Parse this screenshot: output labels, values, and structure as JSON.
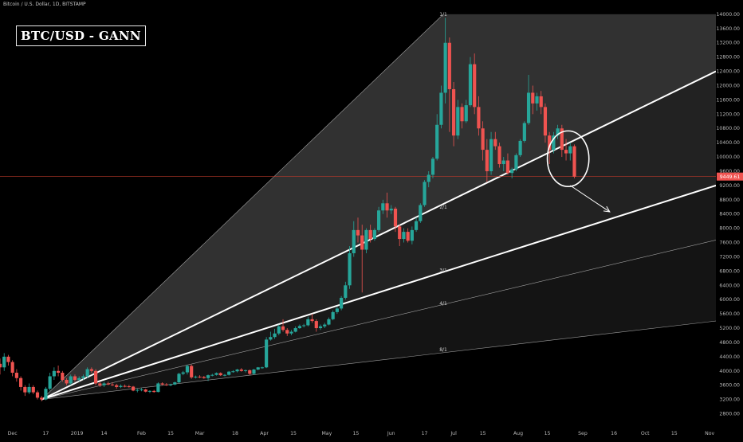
{
  "header": {
    "symbol": "Bitcoin / U.S. Dollar, 1D, BITSTAMP",
    "title": "BTC/USD - GANN"
  },
  "colors": {
    "background": "#000000",
    "up": "#26a69a",
    "down": "#ef5350",
    "fan_line": "#ffffff",
    "fan_fill": "#2a2a2a",
    "price_line": "#c0392b",
    "price_tag": "#ef5350",
    "axis_text": "#b8b8b8"
  },
  "chart_data": {
    "type": "candlestick",
    "title": "BTC/USD - GANN",
    "xlabel": "",
    "ylabel": "",
    "y_scale": "linear",
    "ylim": [
      2700,
      14400
    ],
    "x_range": [
      "2018-11-25",
      "2019-11-04"
    ],
    "grid": false,
    "y_ticks": [
      "2800.00",
      "3200.00",
      "3600.00",
      "4000.00",
      "4400.00",
      "4800.00",
      "5200.00",
      "5600.00",
      "6000.00",
      "6400.00",
      "6800.00",
      "7200.00",
      "7600.00",
      "8000.00",
      "8400.00",
      "8800.00",
      "9200.00",
      "9600.00",
      "10000.00",
      "10400.00",
      "10800.00",
      "11200.00",
      "11600.00",
      "12000.00",
      "12400.00",
      "12800.00",
      "13200.00",
      "13600.00",
      "14000.00"
    ],
    "x_ticks": [
      {
        "label": "Dec",
        "date": "2018-12-01"
      },
      {
        "label": "17",
        "date": "2018-12-17"
      },
      {
        "label": "2019",
        "date": "2019-01-01"
      },
      {
        "label": "14",
        "date": "2019-01-14"
      },
      {
        "label": "Feb",
        "date": "2019-02-01"
      },
      {
        "label": "15",
        "date": "2019-02-15"
      },
      {
        "label": "Mar",
        "date": "2019-03-01"
      },
      {
        "label": "18",
        "date": "2019-03-18"
      },
      {
        "label": "Apr",
        "date": "2019-04-01"
      },
      {
        "label": "15",
        "date": "2019-04-15"
      },
      {
        "label": "May",
        "date": "2019-05-01"
      },
      {
        "label": "15",
        "date": "2019-05-15"
      },
      {
        "label": "Jun",
        "date": "2019-06-01"
      },
      {
        "label": "17",
        "date": "2019-06-17"
      },
      {
        "label": "Jul",
        "date": "2019-07-01"
      },
      {
        "label": "15",
        "date": "2019-07-15"
      },
      {
        "label": "Aug",
        "date": "2019-08-01"
      },
      {
        "label": "15",
        "date": "2019-08-15"
      },
      {
        "label": "Sep",
        "date": "2019-09-01"
      },
      {
        "label": "16",
        "date": "2019-09-16"
      },
      {
        "label": "Oct",
        "date": "2019-10-01"
      },
      {
        "label": "15",
        "date": "2019-10-15"
      },
      {
        "label": "Nov",
        "date": "2019-11-01"
      }
    ],
    "last_price": {
      "value": 9449.61,
      "label": "9449.61"
    },
    "gann_fan": {
      "origin": {
        "date": "2018-12-15",
        "price": 3200
      },
      "lines": [
        {
          "label": "1/1",
          "end": {
            "date": "2019-06-26",
            "price": 14000
          },
          "style": "thin"
        },
        {
          "label": "2/1",
          "end": {
            "date": "2019-11-04",
            "price": 12400
          },
          "style": "bold"
        },
        {
          "label": "3/1",
          "end": {
            "date": "2019-11-04",
            "price": 9200
          },
          "style": "bold"
        },
        {
          "label": "4/1",
          "end": {
            "date": "2019-11-04",
            "price": 7670
          },
          "style": "thin"
        },
        {
          "label": "8/1",
          "end": {
            "date": "2019-11-04",
            "price": 5400
          },
          "style": "thin"
        }
      ],
      "label_positions": [
        {
          "label": "1/1",
          "date": "2019-06-26",
          "price": 13950
        },
        {
          "label": "2/1",
          "date": "2019-06-26",
          "price": 8550
        },
        {
          "label": "3/1",
          "date": "2019-06-26",
          "price": 6780
        },
        {
          "label": "4/1",
          "date": "2019-06-26",
          "price": 5850
        },
        {
          "label": "8/1",
          "date": "2019-06-26",
          "price": 4550
        }
      ]
    },
    "annotations": {
      "ellipse": {
        "date": "2019-08-25",
        "price": 9950,
        "rx_days": 5,
        "ry_price": 780
      },
      "arrow": {
        "from": {
          "date": "2019-08-26",
          "price": 9200
        },
        "to": {
          "date": "2019-09-14",
          "price": 8460
        }
      }
    },
    "ohlc": {
      "columns": [
        "date",
        "open",
        "high",
        "low",
        "close"
      ],
      "rows": [
        [
          "2018-11-25",
          4200,
          4350,
          3900,
          4100
        ],
        [
          "2018-11-27",
          4100,
          4500,
          4000,
          4400
        ],
        [
          "2018-11-29",
          4400,
          4450,
          4150,
          4250
        ],
        [
          "2018-12-01",
          4250,
          4300,
          3850,
          3950
        ],
        [
          "2018-12-03",
          3950,
          4050,
          3700,
          3800
        ],
        [
          "2018-12-05",
          3800,
          3850,
          3450,
          3550
        ],
        [
          "2018-12-07",
          3550,
          3600,
          3300,
          3400
        ],
        [
          "2018-12-09",
          3400,
          3650,
          3350,
          3550
        ],
        [
          "2018-12-11",
          3550,
          3600,
          3350,
          3400
        ],
        [
          "2018-12-13",
          3400,
          3450,
          3200,
          3250
        ],
        [
          "2018-12-15",
          3250,
          3300,
          3150,
          3200
        ],
        [
          "2018-12-17",
          3200,
          3550,
          3180,
          3500
        ],
        [
          "2018-12-19",
          3500,
          3950,
          3450,
          3850
        ],
        [
          "2018-12-21",
          3850,
          4100,
          3750,
          4000
        ],
        [
          "2018-12-23",
          4000,
          4150,
          3850,
          3950
        ],
        [
          "2018-12-25",
          3950,
          4000,
          3700,
          3750
        ],
        [
          "2018-12-27",
          3750,
          3800,
          3600,
          3650
        ],
        [
          "2018-12-29",
          3650,
          3900,
          3600,
          3850
        ],
        [
          "2018-12-31",
          3850,
          3900,
          3700,
          3750
        ],
        [
          "2019-01-02",
          3750,
          3850,
          3700,
          3800
        ],
        [
          "2019-01-04",
          3800,
          3900,
          3750,
          3850
        ],
        [
          "2019-01-06",
          3850,
          4100,
          3800,
          4050
        ],
        [
          "2019-01-08",
          4050,
          4100,
          3950,
          4000
        ],
        [
          "2019-01-10",
          4000,
          4050,
          3600,
          3650
        ],
        [
          "2019-01-12",
          3650,
          3700,
          3550,
          3600
        ],
        [
          "2019-01-14",
          3600,
          3700,
          3550,
          3650
        ],
        [
          "2019-01-16",
          3650,
          3700,
          3600,
          3620
        ],
        [
          "2019-01-18",
          3620,
          3680,
          3580,
          3600
        ],
        [
          "2019-01-20",
          3600,
          3640,
          3500,
          3550
        ],
        [
          "2019-01-22",
          3550,
          3620,
          3520,
          3580
        ],
        [
          "2019-01-24",
          3580,
          3620,
          3540,
          3570
        ],
        [
          "2019-01-26",
          3570,
          3610,
          3530,
          3560
        ],
        [
          "2019-01-28",
          3560,
          3580,
          3430,
          3450
        ],
        [
          "2019-01-30",
          3450,
          3500,
          3400,
          3470
        ],
        [
          "2019-02-01",
          3470,
          3520,
          3430,
          3480
        ],
        [
          "2019-02-03",
          3480,
          3500,
          3400,
          3420
        ],
        [
          "2019-02-05",
          3420,
          3460,
          3380,
          3440
        ],
        [
          "2019-02-07",
          3440,
          3470,
          3390,
          3410
        ],
        [
          "2019-02-09",
          3410,
          3680,
          3400,
          3650
        ],
        [
          "2019-02-11",
          3650,
          3680,
          3600,
          3620
        ],
        [
          "2019-02-13",
          3620,
          3660,
          3580,
          3600
        ],
        [
          "2019-02-15",
          3600,
          3640,
          3570,
          3620
        ],
        [
          "2019-02-17",
          3620,
          3700,
          3600,
          3680
        ],
        [
          "2019-02-19",
          3680,
          3950,
          3660,
          3920
        ],
        [
          "2019-02-21",
          3920,
          4000,
          3880,
          3960
        ],
        [
          "2019-02-23",
          3960,
          4180,
          3900,
          4140
        ],
        [
          "2019-02-25",
          4140,
          4180,
          3780,
          3820
        ],
        [
          "2019-02-27",
          3820,
          3870,
          3790,
          3840
        ],
        [
          "2019-03-01",
          3840,
          3880,
          3800,
          3830
        ],
        [
          "2019-03-03",
          3830,
          3860,
          3780,
          3800
        ],
        [
          "2019-03-05",
          3800,
          3900,
          3720,
          3880
        ],
        [
          "2019-03-07",
          3880,
          3920,
          3850,
          3890
        ],
        [
          "2019-03-09",
          3890,
          3960,
          3870,
          3940
        ],
        [
          "2019-03-11",
          3940,
          3960,
          3860,
          3880
        ],
        [
          "2019-03-13",
          3880,
          3910,
          3850,
          3890
        ],
        [
          "2019-03-15",
          3890,
          4000,
          3870,
          3980
        ],
        [
          "2019-03-17",
          3980,
          4020,
          3950,
          3990
        ],
        [
          "2019-03-19",
          3990,
          4060,
          3960,
          4040
        ],
        [
          "2019-03-21",
          4040,
          4080,
          3980,
          4000
        ],
        [
          "2019-03-23",
          4000,
          4040,
          3960,
          4020
        ],
        [
          "2019-03-25",
          4020,
          4040,
          3880,
          3920
        ],
        [
          "2019-03-27",
          3920,
          4060,
          3900,
          4040
        ],
        [
          "2019-03-29",
          4040,
          4110,
          4020,
          4100
        ],
        [
          "2019-03-31",
          4100,
          4120,
          4060,
          4100
        ],
        [
          "2019-04-02",
          4100,
          4950,
          4080,
          4880
        ],
        [
          "2019-04-04",
          4880,
          5100,
          4850,
          4950
        ],
        [
          "2019-04-06",
          4950,
          5180,
          4900,
          5050
        ],
        [
          "2019-04-08",
          5050,
          5300,
          5000,
          5250
        ],
        [
          "2019-04-10",
          5250,
          5450,
          5100,
          5150
        ],
        [
          "2019-04-12",
          5150,
          5200,
          4980,
          5050
        ],
        [
          "2019-04-14",
          5050,
          5150,
          5000,
          5100
        ],
        [
          "2019-04-16",
          5100,
          5250,
          5080,
          5200
        ],
        [
          "2019-04-18",
          5200,
          5300,
          5180,
          5260
        ],
        [
          "2019-04-20",
          5260,
          5320,
          5220,
          5280
        ],
        [
          "2019-04-22",
          5280,
          5520,
          5250,
          5450
        ],
        [
          "2019-04-24",
          5450,
          5600,
          5350,
          5400
        ],
        [
          "2019-04-26",
          5400,
          5450,
          5100,
          5200
        ],
        [
          "2019-04-28",
          5200,
          5300,
          5150,
          5250
        ],
        [
          "2019-04-30",
          5250,
          5350,
          5200,
          5300
        ],
        [
          "2019-05-02",
          5300,
          5500,
          5280,
          5450
        ],
        [
          "2019-05-04",
          5450,
          5700,
          5420,
          5650
        ],
        [
          "2019-05-06",
          5650,
          5800,
          5600,
          5750
        ],
        [
          "2019-05-08",
          5750,
          6100,
          5700,
          6050
        ],
        [
          "2019-05-10",
          6050,
          6500,
          6000,
          6400
        ],
        [
          "2019-05-12",
          6400,
          7500,
          6300,
          7300
        ],
        [
          "2019-05-14",
          7300,
          8200,
          7200,
          7950
        ],
        [
          "2019-05-16",
          7950,
          8300,
          7600,
          7800
        ],
        [
          "2019-05-18",
          7800,
          8100,
          6200,
          7400
        ],
        [
          "2019-05-20",
          7400,
          8000,
          7300,
          7950
        ],
        [
          "2019-05-22",
          7950,
          8100,
          7600,
          7700
        ],
        [
          "2019-05-24",
          7700,
          8000,
          7650,
          7950
        ],
        [
          "2019-05-26",
          7950,
          8600,
          7900,
          8500
        ],
        [
          "2019-05-28",
          8500,
          8800,
          8400,
          8700
        ],
        [
          "2019-05-30",
          8700,
          9000,
          8300,
          8500
        ],
        [
          "2019-06-01",
          8500,
          8650,
          8400,
          8550
        ],
        [
          "2019-06-03",
          8550,
          8600,
          7900,
          8050
        ],
        [
          "2019-06-05",
          8050,
          8100,
          7500,
          7700
        ],
        [
          "2019-06-07",
          7700,
          8000,
          7600,
          7900
        ],
        [
          "2019-06-09",
          7900,
          8000,
          7600,
          7650
        ],
        [
          "2019-06-11",
          7650,
          8050,
          7550,
          7950
        ],
        [
          "2019-06-13",
          7950,
          8300,
          7900,
          8200
        ],
        [
          "2019-06-15",
          8200,
          8700,
          8150,
          8650
        ],
        [
          "2019-06-17",
          8650,
          9350,
          8600,
          9300
        ],
        [
          "2019-06-19",
          9300,
          9600,
          9150,
          9500
        ],
        [
          "2019-06-21",
          9500,
          10000,
          9400,
          9950
        ],
        [
          "2019-06-23",
          9950,
          11200,
          9900,
          10900
        ],
        [
          "2019-06-25",
          10900,
          12000,
          10800,
          11800
        ],
        [
          "2019-06-27",
          11800,
          13900,
          11500,
          13200
        ],
        [
          "2019-06-29",
          13200,
          13350,
          10700,
          11900
        ],
        [
          "2019-07-01",
          11900,
          12100,
          10300,
          10600
        ],
        [
          "2019-07-03",
          10600,
          11600,
          10500,
          11400
        ],
        [
          "2019-07-05",
          11400,
          11500,
          10800,
          11000
        ],
        [
          "2019-07-07",
          11000,
          11600,
          10950,
          11450
        ],
        [
          "2019-07-09",
          11450,
          12800,
          11400,
          12600
        ],
        [
          "2019-07-11",
          12600,
          12900,
          11200,
          11400
        ],
        [
          "2019-07-13",
          11400,
          11700,
          10600,
          10800
        ],
        [
          "2019-07-15",
          10800,
          11000,
          9900,
          10200
        ],
        [
          "2019-07-17",
          10200,
          10500,
          9300,
          9600
        ],
        [
          "2019-07-19",
          9600,
          10700,
          9500,
          10500
        ],
        [
          "2019-07-21",
          10500,
          10700,
          10200,
          10300
        ],
        [
          "2019-07-23",
          10300,
          10400,
          9700,
          9800
        ],
        [
          "2019-07-25",
          9800,
          10000,
          9600,
          9900
        ],
        [
          "2019-07-27",
          9900,
          10100,
          9500,
          9550
        ],
        [
          "2019-07-29",
          9550,
          9700,
          9400,
          9650
        ],
        [
          "2019-07-31",
          9650,
          10100,
          9600,
          10050
        ],
        [
          "2019-08-02",
          10050,
          10500,
          10000,
          10450
        ],
        [
          "2019-08-04",
          10450,
          11000,
          10400,
          10950
        ],
        [
          "2019-08-06",
          10950,
          12300,
          10900,
          11800
        ],
        [
          "2019-08-08",
          11800,
          12000,
          11200,
          11500
        ],
        [
          "2019-08-10",
          11500,
          11800,
          11300,
          11700
        ],
        [
          "2019-08-12",
          11700,
          11850,
          11200,
          11400
        ],
        [
          "2019-08-14",
          11400,
          11500,
          10400,
          10600
        ],
        [
          "2019-08-16",
          10600,
          10700,
          9800,
          10200
        ],
        [
          "2019-08-18",
          10200,
          10700,
          10100,
          10600
        ],
        [
          "2019-08-20",
          10600,
          10900,
          10500,
          10800
        ],
        [
          "2019-08-22",
          10800,
          10900,
          10000,
          10200
        ],
        [
          "2019-08-24",
          10200,
          10500,
          9900,
          10100
        ],
        [
          "2019-08-26",
          10100,
          10400,
          9900,
          10300
        ],
        [
          "2019-08-28",
          10300,
          10350,
          9400,
          9450
        ]
      ]
    }
  }
}
